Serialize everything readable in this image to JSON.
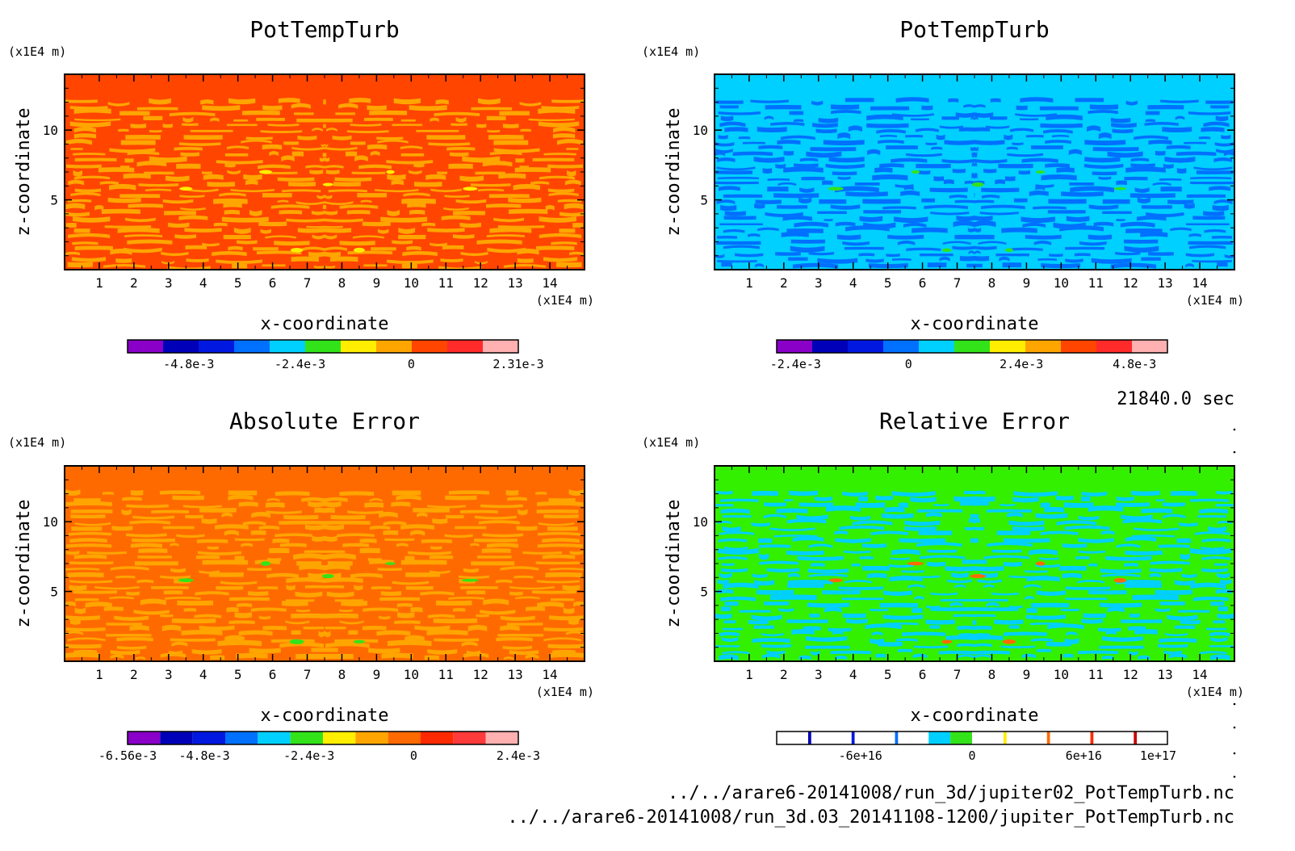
{
  "footer": {
    "time": "21840.0 sec",
    "file1": "../../arare6-20141008/run_3d/jupiter02_PotTempTurb.nc",
    "file2": "../../arare6-20141008/run_3d.03_20141108-1200/jupiter_PotTempTurb.nc"
  },
  "chart_data": [
    {
      "type": "heatmap",
      "title": "PotTempTurb",
      "xlabel": "x-coordinate",
      "ylabel": "z-coordinate",
      "xunit": "(x1E4 m)",
      "yunit": "(x1E4 m)",
      "xlim": [
        0,
        15
      ],
      "ylim": [
        0,
        14
      ],
      "xticks": [
        "1",
        "2",
        "3",
        "4",
        "5",
        "6",
        "7",
        "8",
        "9",
        "10",
        "11",
        "12",
        "13",
        "14"
      ],
      "yticks": [
        "5",
        "10"
      ],
      "base_color": "#ff4500",
      "pattern_color": "#ffa500",
      "highlight_color": "#ffee00",
      "colorbar": {
        "colors": [
          "#8a00c8",
          "#0000b8",
          "#0018e0",
          "#0070ff",
          "#00d0ff",
          "#33e31a",
          "#ffee00",
          "#ffa500",
          "#ff4500",
          "#ff2a2a",
          "#ffb0b0"
        ],
        "tick_labels": [
          {
            "value": -0.0048,
            "label": "-4.8e-3"
          },
          {
            "value": -0.0024,
            "label": "-2.4e-3"
          },
          {
            "value": 0,
            "label": "0"
          },
          {
            "value": 0.00231,
            "label": "2.31e-3"
          }
        ],
        "min": -0.00612,
        "max": 0.00231
      }
    },
    {
      "type": "heatmap",
      "title": "PotTempTurb",
      "xlabel": "x-coordinate",
      "ylabel": "z-coordinate",
      "xunit": "(x1E4 m)",
      "yunit": "(x1E4 m)",
      "xlim": [
        0,
        15
      ],
      "ylim": [
        0,
        14
      ],
      "xticks": [
        "1",
        "2",
        "3",
        "4",
        "5",
        "6",
        "7",
        "8",
        "9",
        "10",
        "11",
        "12",
        "13",
        "14"
      ],
      "yticks": [
        "5",
        "10"
      ],
      "base_color": "#00d0ff",
      "pattern_color": "#0070ff",
      "highlight_color": "#33e31a",
      "colorbar": {
        "colors": [
          "#8a00c8",
          "#0000b8",
          "#0018e0",
          "#0070ff",
          "#00d0ff",
          "#33e31a",
          "#ffee00",
          "#ffa500",
          "#ff4500",
          "#ff2a2a",
          "#ffb0b0"
        ],
        "tick_labels": [
          {
            "value": -0.0024,
            "label": "-2.4e-3"
          },
          {
            "value": 0,
            "label": "0"
          },
          {
            "value": 0.0024,
            "label": "2.4e-3"
          },
          {
            "value": 0.0048,
            "label": "4.8e-3"
          }
        ],
        "min": -0.0028,
        "max": 0.0055
      }
    },
    {
      "type": "heatmap",
      "title": "Absolute Error",
      "xlabel": "x-coordinate",
      "ylabel": "z-coordinate",
      "xunit": "(x1E4 m)",
      "yunit": "(x1E4 m)",
      "xlim": [
        0,
        15
      ],
      "ylim": [
        0,
        14
      ],
      "xticks": [
        "1",
        "2",
        "3",
        "4",
        "5",
        "6",
        "7",
        "8",
        "9",
        "10",
        "11",
        "12",
        "13",
        "14"
      ],
      "yticks": [
        "5",
        "10"
      ],
      "base_color": "#ff6a00",
      "pattern_color": "#ffa500",
      "highlight_color": "#33e31a",
      "colorbar": {
        "colors": [
          "#8a00c8",
          "#0000b8",
          "#0018e0",
          "#0070ff",
          "#00d0ff",
          "#33e31a",
          "#ffee00",
          "#ffa500",
          "#ff6a00",
          "#ff2a00",
          "#ff3a3a",
          "#ffb0b0"
        ],
        "tick_labels": [
          {
            "value": -0.00656,
            "label": "-6.56e-3"
          },
          {
            "value": -0.0048,
            "label": "-4.8e-3"
          },
          {
            "value": -0.0024,
            "label": "-2.4e-3"
          },
          {
            "value": 0,
            "label": "0"
          },
          {
            "value": 0.0024,
            "label": "2.4e-3"
          }
        ],
        "min": -0.00656,
        "max": 0.0024
      }
    },
    {
      "type": "heatmap",
      "title": "Relative Error",
      "xlabel": "x-coordinate",
      "ylabel": "z-coordinate",
      "xunit": "(x1E4 m)",
      "yunit": "(x1E4 m)",
      "xlim": [
        0,
        15
      ],
      "ylim": [
        0,
        14
      ],
      "xticks": [
        "1",
        "2",
        "3",
        "4",
        "5",
        "6",
        "7",
        "8",
        "9",
        "10",
        "11",
        "12",
        "13",
        "14"
      ],
      "yticks": [
        "5",
        "10"
      ],
      "base_color": "#33f000",
      "pattern_color": "#00d0ff",
      "highlight_color": "#ff6a00",
      "colorbar": {
        "style": "sparse",
        "colors": [
          "#ffffff",
          "#0000b8",
          "#ffffff",
          "#0018e0",
          "#ffffff",
          "#0070ff",
          "#ffffff",
          "#00d0ff",
          "#33e31a",
          "#ffffff",
          "#ffee00",
          "#ffffff",
          "#ff6a00",
          "#ffffff",
          "#ff2a00",
          "#ffffff",
          "#cc0000",
          "#ffffff"
        ],
        "tick_labels": [
          {
            "value": -6e+16,
            "label": "-6e+16"
          },
          {
            "value": 0,
            "label": "0"
          },
          {
            "value": 6e+16,
            "label": "6e+16"
          },
          {
            "value": 1e+17,
            "label": "1e+17"
          }
        ],
        "min": -1.05e+17,
        "max": 1.05e+17
      }
    }
  ]
}
